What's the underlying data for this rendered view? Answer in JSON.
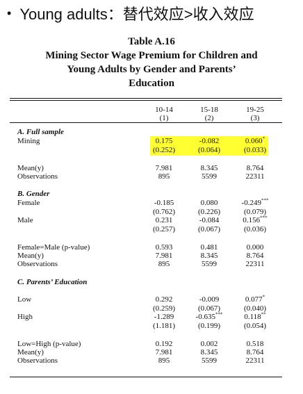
{
  "slide": {
    "bullet_char": "•",
    "heading": "Young adults：替代效应>收入效应"
  },
  "table": {
    "number": "Table A.16",
    "title_line1": "Mining Sector Wage Premium for Children and",
    "title_line2": "Young Adults by Gender and Parents’",
    "title_line3": "Education",
    "columns": [
      {
        "age": "10-14",
        "num": "(1)"
      },
      {
        "age": "15-18",
        "num": "(2)"
      },
      {
        "age": "19-25",
        "num": "(3)"
      }
    ],
    "sections": {
      "a": "A. Full sample",
      "b": "B. Gender",
      "c": "C. Parents’ Education"
    },
    "rows": {
      "mining": {
        "label": "Mining",
        "coef": [
          "0.175",
          "-0.082",
          "0.060"
        ],
        "stars": [
          "",
          "",
          "*"
        ],
        "se": [
          "(0.252)",
          "(0.064)",
          "(0.033)"
        ]
      },
      "mean_a": {
        "label": "Mean(y)",
        "vals": [
          "7.981",
          "8.345",
          "8.764"
        ]
      },
      "obs_a": {
        "label": "Observations",
        "vals": [
          "895",
          "5599",
          "22311"
        ]
      },
      "female": {
        "label": "Female",
        "coef": [
          "-0.185",
          "0.080",
          "-0.249"
        ],
        "stars": [
          "",
          "",
          "***"
        ],
        "se": [
          "(0.762)",
          "(0.226)",
          "(0.079)"
        ]
      },
      "male": {
        "label": "Male",
        "coef": [
          "0.231",
          "-0.084",
          "0.156"
        ],
        "stars": [
          "",
          "",
          "***"
        ],
        "se": [
          "(0.257)",
          "(0.067)",
          "(0.036)"
        ]
      },
      "fm_p": {
        "label": "Female=Male (p-value)",
        "vals": [
          "0.593",
          "0.481",
          "0.000"
        ]
      },
      "mean_b": {
        "label": "Mean(y)",
        "vals": [
          "7.981",
          "8.345",
          "8.764"
        ]
      },
      "obs_b": {
        "label": "Observations",
        "vals": [
          "895",
          "5599",
          "22311"
        ]
      },
      "low": {
        "label": "Low",
        "coef": [
          "0.292",
          "-0.009",
          "0.077"
        ],
        "stars": [
          "",
          "",
          "*"
        ],
        "se": [
          "(0.259)",
          "(0.067)",
          "(0.040)"
        ]
      },
      "high": {
        "label": "High",
        "coef": [
          "-1.289",
          "-0.635",
          "0.118"
        ],
        "stars": [
          "",
          "***",
          "**"
        ],
        "se": [
          "(1.181)",
          "(0.199)",
          "(0.054)"
        ]
      },
      "lh_p": {
        "label": "Low=High (p-value)",
        "vals": [
          "0.192",
          "0.002",
          "0.518"
        ]
      },
      "mean_c": {
        "label": "Mean(y)",
        "vals": [
          "7.981",
          "8.345",
          "8.764"
        ]
      },
      "obs_c": {
        "label": "Observations",
        "vals": [
          "895",
          "5599",
          "22311"
        ]
      }
    },
    "highlight_color": "#ffff33"
  }
}
